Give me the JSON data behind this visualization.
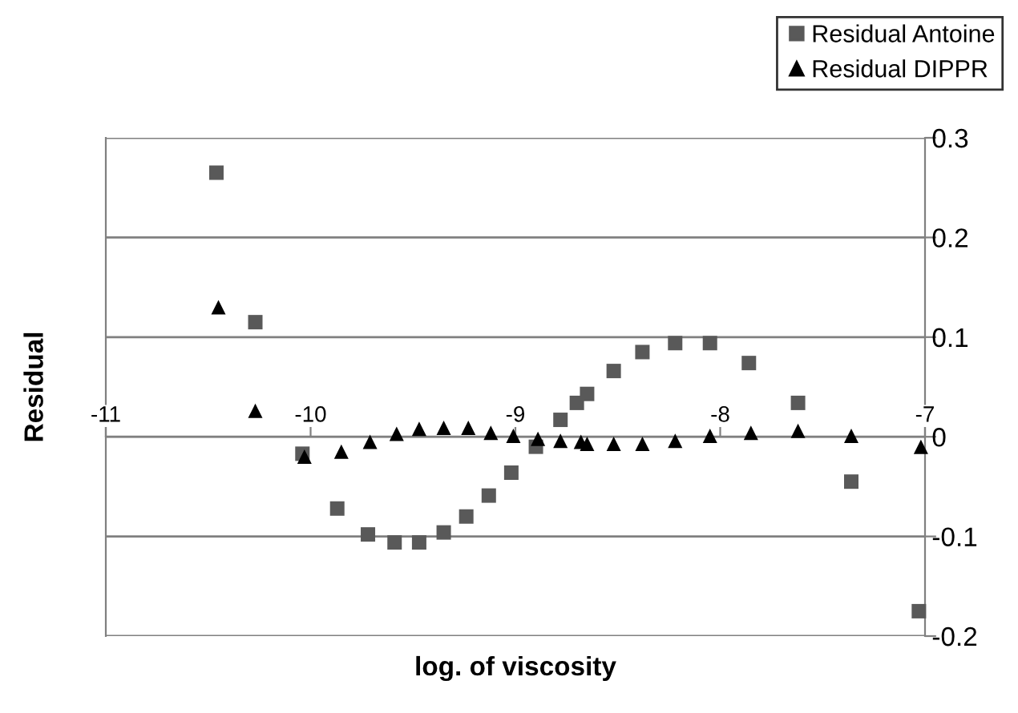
{
  "chart_data": {
    "type": "scatter",
    "xlabel": "log. of viscosity",
    "ylabel": "Residual",
    "xlim": [
      -11,
      -7
    ],
    "xticks": [
      -11,
      -10,
      -9,
      -8,
      -7
    ],
    "ylim": [
      -0.2,
      0.3
    ],
    "yticks": [
      -0.2,
      -0.1,
      0,
      0.1,
      0.2,
      0.3
    ],
    "grid": "y",
    "legend": "top right",
    "series": [
      {
        "name": "Residual Antoine",
        "color": "#595959",
        "marker": "square",
        "x": [
          -10.46,
          -10.27,
          -10.04,
          -9.87,
          -9.72,
          -9.59,
          -9.47,
          -9.35,
          -9.24,
          -9.13,
          -9.02,
          -8.9,
          -8.78,
          -8.7,
          -8.65,
          -8.52,
          -8.38,
          -8.22,
          -8.05,
          -7.86,
          -7.62,
          -7.36,
          -7.03
        ],
        "values": [
          0.265,
          0.115,
          -0.017,
          -0.072,
          -0.098,
          -0.106,
          -0.106,
          -0.096,
          -0.08,
          -0.059,
          -0.036,
          -0.01,
          0.017,
          0.034,
          0.043,
          0.066,
          0.085,
          0.094,
          0.094,
          0.074,
          0.034,
          -0.045,
          -0.175
        ]
      },
      {
        "name": "Residual DIPPR",
        "color": "#000000",
        "marker": "triangle",
        "x": [
          -10.45,
          -10.27,
          -10.03,
          -9.85,
          -9.71,
          -9.58,
          -9.47,
          -9.35,
          -9.23,
          -9.12,
          -9.01,
          -8.89,
          -8.78,
          -8.68,
          -8.65,
          -8.52,
          -8.38,
          -8.22,
          -8.05,
          -7.85,
          -7.62,
          -7.36,
          -7.02
        ],
        "values": [
          0.13,
          0.026,
          -0.02,
          -0.015,
          -0.005,
          0.003,
          0.008,
          0.009,
          0.009,
          0.004,
          0.001,
          -0.002,
          -0.004,
          -0.005,
          -0.007,
          -0.007,
          -0.007,
          -0.004,
          0.001,
          0.004,
          0.006,
          0.001,
          -0.01
        ]
      }
    ]
  }
}
